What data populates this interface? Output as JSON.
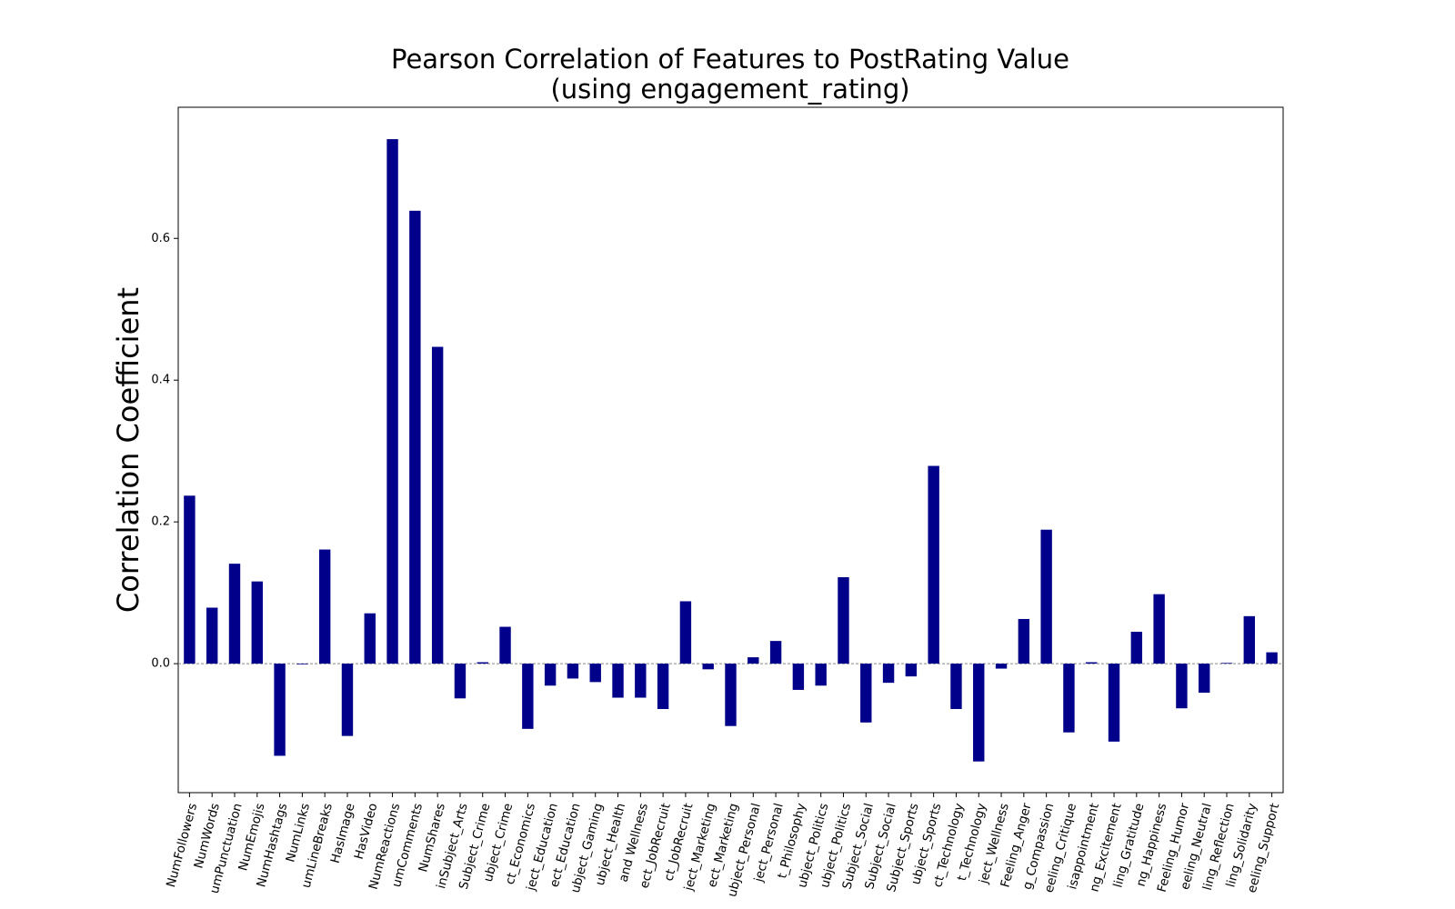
{
  "chart_data": {
    "type": "bar",
    "title": "Pearson Correlation of Features to PostRating Value",
    "subtitle": "(using engagement_rating)",
    "y_label": "Correlation Coefficient",
    "color": "#00008b",
    "categories": [
      "NumFollowers",
      "NumWords",
      "umPunctuation",
      "NumEmojis",
      "NumHashtags",
      "NumLinks",
      "umLineBreaks",
      "HasImage",
      "HasVideo",
      "NumReactions",
      "umComments",
      "NumShares",
      "inSubject_Arts",
      "Subject_Crime",
      "ubject_Crime",
      "ct_Economics",
      "ject_Education",
      "ect_Education",
      "ubject_Gaming",
      "ubject_Health",
      "and Wellness",
      "ect_JobRecruit",
      "ct_JobRecruit",
      "ject_Marketing",
      "ect_Marketing",
      "ubject_Personal",
      "ject_Personal",
      "t_Philosophy",
      "ubject_Politics",
      "ubject_Politics",
      "Subject_Social",
      "Subject_Social",
      "Subject_Sports",
      "ubject_Sports",
      "ct_Technology",
      "t_Technology",
      "ject_Wellness",
      "Feeling_Anger",
      "g_Compassion",
      "eeling_Critique",
      "isappointment",
      "ng_Excitement",
      "ling_Gratitude",
      "ng_Happiness",
      "Feeling_Humor",
      "eeling_Neutral",
      "ling_Reflection",
      "ling_Solidarity",
      "eeling_Support"
    ],
    "values": [
      0.237,
      0.079,
      0.141,
      0.116,
      -0.13,
      -0.001,
      0.161,
      -0.102,
      0.071,
      0.74,
      0.639,
      0.447,
      -0.049,
      0.002,
      0.052,
      -0.092,
      -0.031,
      -0.021,
      -0.026,
      -0.048,
      -0.048,
      -0.064,
      0.088,
      -0.008,
      -0.088,
      0.009,
      0.032,
      -0.037,
      -0.031,
      0.122,
      -0.083,
      -0.027,
      -0.018,
      0.279,
      -0.064,
      -0.138,
      -0.007,
      0.063,
      0.189,
      -0.097,
      0.002,
      -0.11,
      0.045,
      0.098,
      -0.063,
      -0.041,
      0.001,
      0.067,
      0.016
    ],
    "ylim": [
      -0.182,
      0.785
    ],
    "yticks": [
      {
        "value": 0,
        "label": "0.0"
      },
      0.2,
      0.4,
      0.6
    ],
    "zero_line": true
  }
}
